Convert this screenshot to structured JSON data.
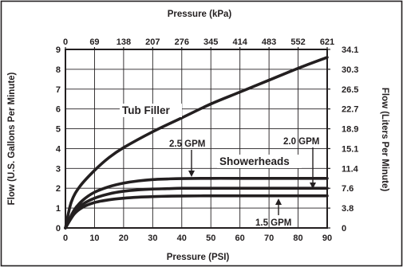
{
  "chart_data": {
    "type": "line",
    "top_xlabel": "Pressure (kPa)",
    "xlabel": "Pressure (PSI)",
    "ylabel_left": "Flow (U.S. Gallons Per Minute)",
    "ylabel_right": "Flow (Liters Per Minute)",
    "xlim": [
      0,
      90
    ],
    "ylim": [
      0,
      9
    ],
    "grid": true,
    "x_ticks": [
      "0",
      "10",
      "20",
      "30",
      "40",
      "50",
      "60",
      "70",
      "80",
      "90"
    ],
    "x_top_ticks": [
      "0",
      "69",
      "138",
      "207",
      "276",
      "345",
      "414",
      "483",
      "552",
      "621"
    ],
    "y_ticks": [
      "0",
      "1",
      "2",
      "3",
      "4",
      "5",
      "6",
      "7",
      "8",
      "9"
    ],
    "y_right_ticks": [
      "0",
      "3.8",
      "7.6",
      "11.4",
      "15.1",
      "18.9",
      "22.7",
      "26.5",
      "30.3",
      "34.1"
    ],
    "series": [
      {
        "name": "Tub Filler",
        "x": [
          0,
          2,
          5,
          10,
          15,
          20,
          30,
          40,
          50,
          60,
          70,
          80,
          90
        ],
        "y": [
          0,
          1.3,
          2.1,
          2.9,
          3.55,
          4.05,
          4.85,
          5.55,
          6.25,
          6.85,
          7.45,
          8.05,
          8.6
        ]
      },
      {
        "name": "2.5 GPM",
        "x": [
          0,
          3,
          6,
          10,
          15,
          20,
          25,
          30,
          35,
          40,
          50,
          60,
          70,
          80,
          90
        ],
        "y": [
          0,
          0.9,
          1.4,
          1.8,
          2.08,
          2.26,
          2.37,
          2.44,
          2.47,
          2.49,
          2.5,
          2.5,
          2.5,
          2.5,
          2.5
        ]
      },
      {
        "name": "2.0 GPM",
        "x": [
          0,
          3,
          6,
          10,
          15,
          20,
          25,
          30,
          35,
          40,
          50,
          60,
          70,
          80,
          90
        ],
        "y": [
          0,
          0.8,
          1.2,
          1.5,
          1.72,
          1.85,
          1.92,
          1.96,
          1.98,
          2.0,
          2.0,
          2.0,
          2.0,
          2.0,
          2.0
        ]
      },
      {
        "name": "1.5 GPM",
        "x": [
          0,
          3,
          6,
          10,
          15,
          20,
          25,
          30,
          35,
          40,
          50,
          60,
          70,
          80,
          90
        ],
        "y": [
          0,
          0.7,
          1.05,
          1.28,
          1.42,
          1.5,
          1.55,
          1.58,
          1.6,
          1.61,
          1.62,
          1.62,
          1.62,
          1.62,
          1.62
        ]
      }
    ],
    "annotations": {
      "tub_filler": "Tub Filler",
      "showerheads": "Showerheads",
      "gpm_25": "2.5 GPM",
      "gpm_20": "2.0 GPM",
      "gpm_15": "1.5 GPM"
    }
  }
}
